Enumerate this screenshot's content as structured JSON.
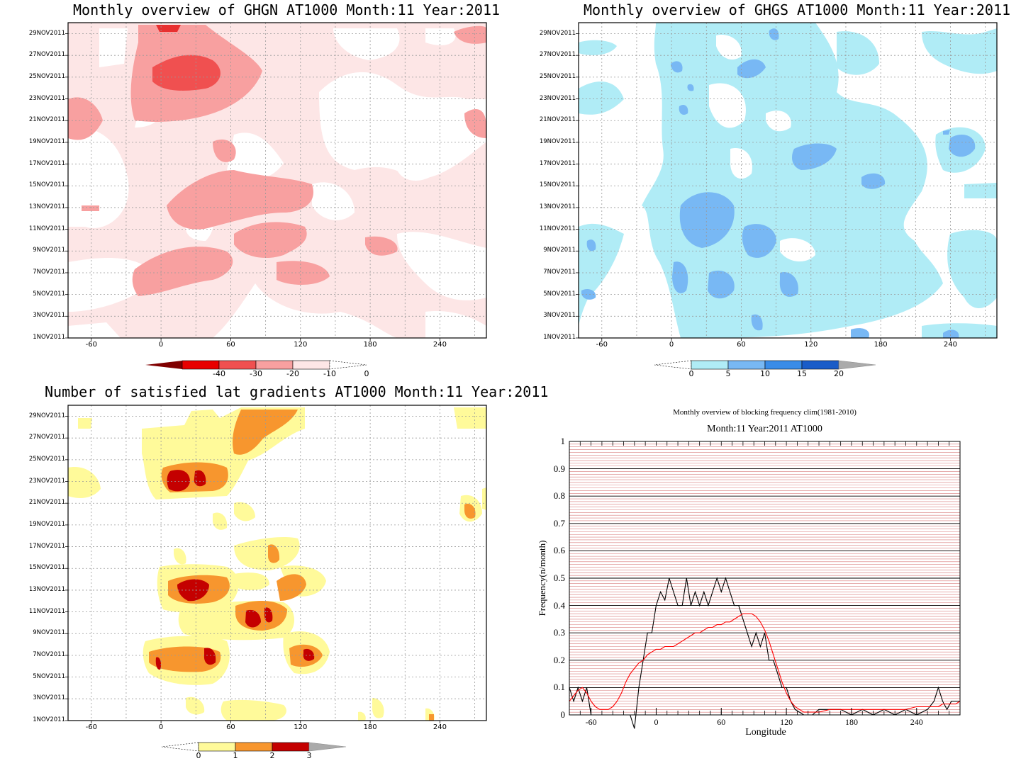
{
  "chart_data": [
    {
      "type": "heatmap",
      "title": "Monthly overview of GHGN AT1000 Month:11 Year:2011",
      "y_tick_labels": [
        "1NOV2011",
        "3NOV2011",
        "5NOV2011",
        "7NOV2011",
        "9NOV2011",
        "11NOV2011",
        "13NOV2011",
        "15NOV2011",
        "17NOV2011",
        "19NOV2011",
        "21NOV2011",
        "23NOV2011",
        "25NOV2011",
        "27NOV2011",
        "29NOV2011"
      ],
      "x_tick_labels": [
        "-60",
        "0",
        "60",
        "120",
        "180",
        "240"
      ],
      "xlim": [
        -80,
        280
      ],
      "colorbar": {
        "labels": [
          "-40",
          "-30",
          "-20",
          "-10",
          "0"
        ],
        "colors": [
          "#800000",
          "#e80000",
          "#f05050",
          "#f8a0a0",
          "#fde6e6",
          "#ffffff"
        ]
      }
    },
    {
      "type": "heatmap",
      "title": "Monthly overview of GHGS AT1000 Month:11 Year:2011",
      "y_tick_labels": [
        "1NOV2011",
        "3NOV2011",
        "5NOV2011",
        "7NOV2011",
        "9NOV2011",
        "11NOV2011",
        "13NOV2011",
        "15NOV2011",
        "17NOV2011",
        "19NOV2011",
        "21NOV2011",
        "23NOV2011",
        "25NOV2011",
        "27NOV2011",
        "29NOV2011"
      ],
      "x_tick_labels": [
        "-60",
        "0",
        "60",
        "120",
        "180",
        "240"
      ],
      "xlim": [
        -80,
        280
      ],
      "colorbar": {
        "labels": [
          "0",
          "5",
          "10",
          "15",
          "20"
        ],
        "colors": [
          "#ffffff",
          "#b0ecf6",
          "#78b8f4",
          "#3a8ce8",
          "#1a5cc8",
          "#aaaaaa"
        ]
      }
    },
    {
      "type": "heatmap",
      "title": "Number of satisfied lat gradients AT1000 Month:11 Year:2011",
      "y_tick_labels": [
        "1NOV2011",
        "3NOV2011",
        "5NOV2011",
        "7NOV2011",
        "9NOV2011",
        "11NOV2011",
        "13NOV2011",
        "15NOV2011",
        "17NOV2011",
        "19NOV2011",
        "21NOV2011",
        "23NOV2011",
        "25NOV2011",
        "27NOV2011",
        "29NOV2011"
      ],
      "x_tick_labels": [
        "-60",
        "0",
        "60",
        "120",
        "180",
        "240"
      ],
      "xlim": [
        -80,
        280
      ],
      "colorbar": {
        "labels": [
          "0",
          "1",
          "2",
          "3"
        ],
        "colors": [
          "#ffffff",
          "#fffa9a",
          "#f7962e",
          "#c40000",
          "#aaaaaa"
        ]
      }
    },
    {
      "type": "line",
      "title": "Monthly overview of blocking frequency clim(1981-2010)",
      "subtitle": "Month:11 Year:2011  AT1000",
      "xlabel": "Longitude",
      "ylabel": "Frequency(n/month)",
      "xlim": [
        -80,
        280
      ],
      "ylim": [
        0,
        1
      ],
      "x_ticks": [
        "-60",
        "0",
        "60",
        "120",
        "180",
        "240"
      ],
      "y_ticks": [
        "0",
        "0.1",
        "0.2",
        "0.3",
        "0.4",
        "0.5",
        "0.6",
        "0.7",
        "0.8",
        "0.9",
        "1"
      ],
      "series": [
        {
          "color": "#000000",
          "x": [
            -80,
            -76,
            -72,
            -68,
            -64,
            -60,
            -56,
            -52,
            -48,
            -44,
            -40,
            -36,
            -32,
            -28,
            -24,
            -20,
            -16,
            -12,
            -8,
            -4,
            0,
            4,
            8,
            12,
            16,
            20,
            24,
            28,
            32,
            36,
            40,
            44,
            48,
            52,
            56,
            60,
            64,
            68,
            72,
            76,
            80,
            84,
            88,
            92,
            96,
            100,
            104,
            108,
            112,
            116,
            120,
            124,
            128,
            132,
            136,
            140,
            144,
            150,
            160,
            170,
            180,
            190,
            200,
            210,
            220,
            230,
            240,
            250,
            256,
            260,
            264,
            268,
            272,
            276,
            280
          ],
          "y": [
            0.1,
            0.05,
            0.1,
            0.05,
            0.1,
            0.0,
            0.0,
            0.0,
            0.0,
            0.0,
            0.0,
            0.0,
            0.0,
            0.0,
            0.0,
            -0.05,
            0.1,
            0.2,
            0.3,
            0.3,
            0.4,
            0.45,
            0.42,
            0.5,
            0.45,
            0.4,
            0.4,
            0.5,
            0.4,
            0.45,
            0.4,
            0.45,
            0.4,
            0.45,
            0.5,
            0.45,
            0.5,
            0.45,
            0.4,
            0.4,
            0.35,
            0.3,
            0.25,
            0.3,
            0.25,
            0.3,
            0.2,
            0.2,
            0.15,
            0.1,
            0.1,
            0.05,
            0.02,
            0.01,
            0.0,
            0.0,
            0.0,
            0.02,
            0.02,
            0.02,
            0.0,
            0.02,
            0.0,
            0.02,
            0.0,
            0.02,
            0.0,
            0.02,
            0.05,
            0.1,
            0.05,
            0.02,
            0.05,
            0.05,
            0.05
          ]
        },
        {
          "color": "#ff0000",
          "x": [
            -80,
            -76,
            -72,
            -68,
            -64,
            -60,
            -56,
            -52,
            -48,
            -44,
            -40,
            -36,
            -32,
            -28,
            -24,
            -20,
            -16,
            -12,
            -8,
            -4,
            0,
            4,
            8,
            12,
            16,
            20,
            24,
            28,
            32,
            36,
            40,
            44,
            48,
            52,
            56,
            60,
            64,
            68,
            72,
            76,
            80,
            84,
            88,
            92,
            96,
            100,
            104,
            108,
            112,
            116,
            120,
            124,
            128,
            132,
            136,
            140,
            144,
            150,
            160,
            170,
            180,
            190,
            200,
            210,
            220,
            230,
            240,
            250,
            256,
            260,
            264,
            268,
            272,
            276,
            280
          ],
          "y": [
            0.05,
            0.07,
            0.09,
            0.1,
            0.08,
            0.05,
            0.03,
            0.02,
            0.02,
            0.02,
            0.03,
            0.05,
            0.08,
            0.12,
            0.15,
            0.17,
            0.19,
            0.2,
            0.22,
            0.23,
            0.24,
            0.24,
            0.25,
            0.25,
            0.25,
            0.26,
            0.27,
            0.28,
            0.29,
            0.3,
            0.3,
            0.31,
            0.32,
            0.32,
            0.33,
            0.33,
            0.34,
            0.34,
            0.35,
            0.36,
            0.37,
            0.37,
            0.37,
            0.36,
            0.34,
            0.31,
            0.27,
            0.22,
            0.17,
            0.12,
            0.08,
            0.05,
            0.03,
            0.02,
            0.01,
            0.01,
            0.01,
            0.01,
            0.02,
            0.02,
            0.02,
            0.02,
            0.02,
            0.02,
            0.02,
            0.02,
            0.03,
            0.03,
            0.03,
            0.03,
            0.04,
            0.04,
            0.04,
            0.04,
            0.05
          ]
        }
      ]
    }
  ]
}
